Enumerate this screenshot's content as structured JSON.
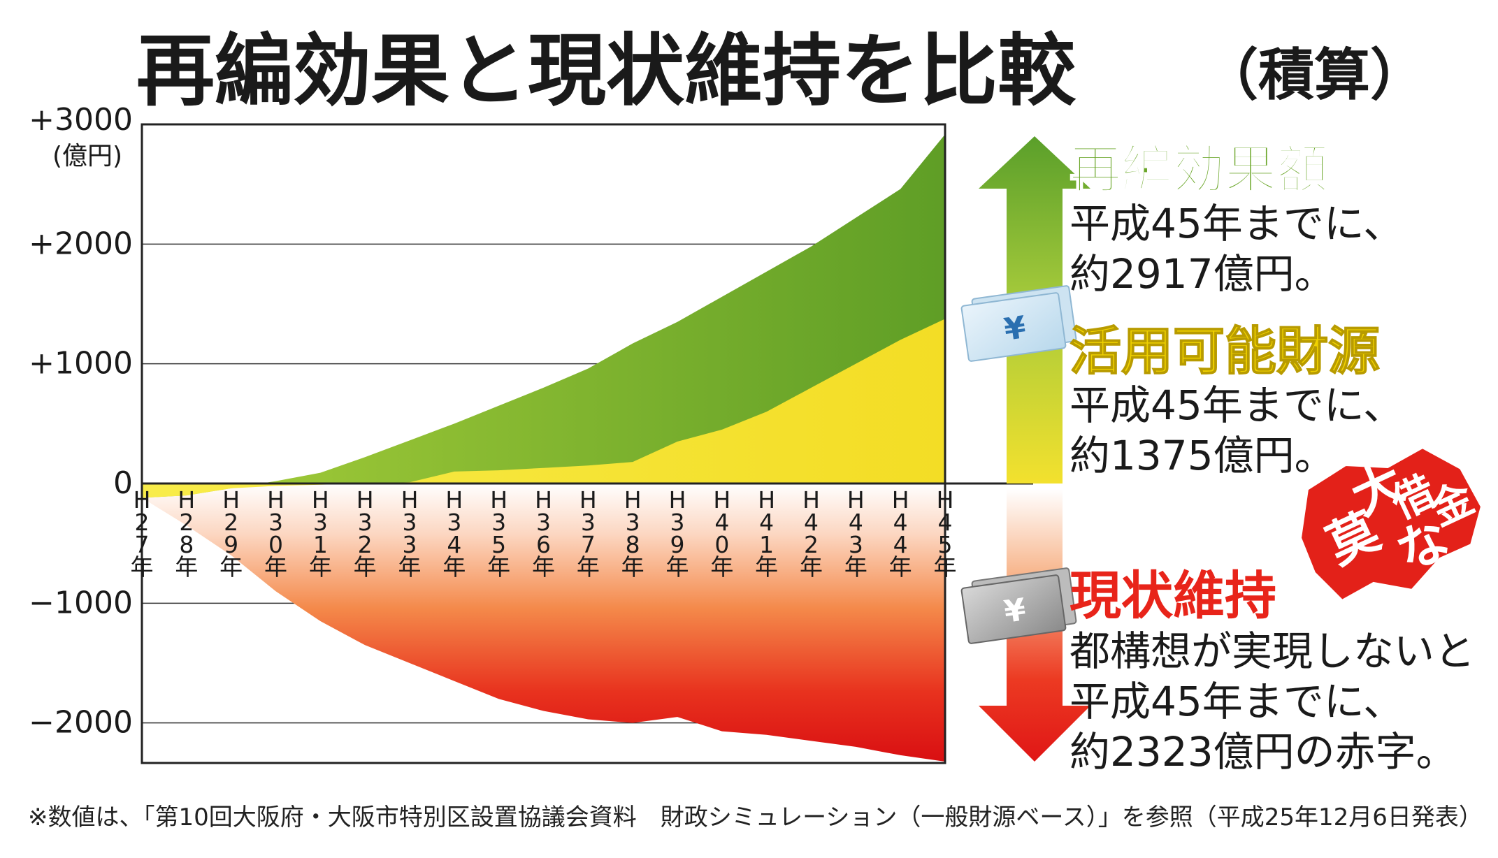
{
  "chart_data": {
    "type": "area",
    "title": "再編効果と現状維持を比較",
    "title_suffix": "（積算）",
    "ylabel": "(億円)",
    "ylim": [
      -2700,
      3000
    ],
    "y_ticks": [
      {
        "value": 3000,
        "label": "+3000"
      },
      {
        "value": 2000,
        "label": "+2000"
      },
      {
        "value": 1000,
        "label": "+1000"
      },
      {
        "value": 0,
        "label": "0"
      },
      {
        "value": -1000,
        "label": "−1000"
      },
      {
        "value": -2000,
        "label": "−2000"
      }
    ],
    "categories": [
      "H27年",
      "H28年",
      "H29年",
      "H30年",
      "H31年",
      "H32年",
      "H33年",
      "H34年",
      "H35年",
      "H36年",
      "H37年",
      "H38年",
      "H39年",
      "H40年",
      "H41年",
      "H42年",
      "H43年",
      "H44年",
      "H45年"
    ],
    "series": [
      {
        "name": "再編効果額",
        "color": "#7ab32e",
        "values": [
          -120,
          -100,
          -40,
          20,
          90,
          220,
          360,
          500,
          650,
          800,
          960,
          1170,
          1350,
          1560,
          1770,
          1980,
          2220,
          2460,
          2917
        ]
      },
      {
        "name": "活用可能財源",
        "color": "#f2e34a",
        "values": [
          -120,
          -100,
          -40,
          -20,
          -10,
          0,
          10,
          100,
          110,
          130,
          150,
          180,
          350,
          450,
          600,
          800,
          1000,
          1200,
          1375
        ]
      },
      {
        "name": "現状維持",
        "color": "#e8281c",
        "values": [
          -120,
          -350,
          -600,
          -900,
          -1150,
          -1350,
          -1500,
          -1650,
          -1800,
          -1900,
          -1970,
          -2000,
          -1950,
          -2070,
          -2100,
          -2150,
          -2200,
          -2270,
          -2323
        ]
      }
    ],
    "grid": true,
    "legend": "right"
  },
  "panel": {
    "effect_title": "再編効果額",
    "effect_line1": "平成45年までに、",
    "effect_line2": "約2917億円。",
    "fund_title": "活用可能財源",
    "fund_line1": "平成45年までに、",
    "fund_line2": "約1375億円。",
    "status_title": "現状維持",
    "status_line1": "都構想が実現しないと",
    "status_line2": "平成45年までに、",
    "status_line3": "約2323億円の赤字。",
    "badge_chars": [
      "莫",
      "大",
      "な",
      "借",
      "金"
    ],
    "yen_symbol": "¥"
  },
  "note": "※数値は、「第10回大阪府・大阪市特別区設置協議会資料　財政シミュレーション（一般財源ベース）」を参照（平成25年12月6日発表）",
  "colors": {
    "green": "#7ab32e",
    "yellow": "#f5e43c",
    "red": "#e8281c",
    "effect_title": "#6aa628",
    "fund_title": "#f0d200",
    "status_title": "#e8241a"
  }
}
